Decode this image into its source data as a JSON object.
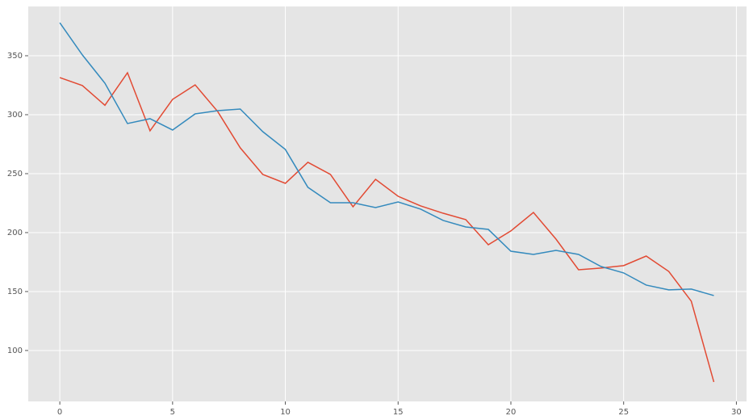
{
  "chart_data": {
    "type": "line",
    "x": [
      0,
      1,
      2,
      3,
      4,
      5,
      6,
      7,
      8,
      9,
      10,
      11,
      12,
      13,
      14,
      15,
      16,
      17,
      18,
      19,
      20,
      21,
      22,
      23,
      24,
      25,
      26,
      27,
      28,
      29
    ],
    "series": [
      {
        "color": "#E24A33",
        "values": [
          331.5,
          324.7,
          308,
          335.6,
          286.3,
          313,
          325.3,
          302.7,
          271.9,
          249.3,
          241.8,
          259.6,
          249.3,
          221.9,
          245.2,
          230.8,
          222.6,
          216.4,
          211,
          189.7,
          201.4,
          217.1,
          194.5,
          168.5,
          169.9,
          172,
          180.1,
          167.1,
          141.8,
          73.3
        ]
      },
      {
        "color": "#348ABD",
        "values": [
          378,
          350.7,
          326.7,
          292.5,
          296.6,
          287,
          300.7,
          303.4,
          304.8,
          285.6,
          270.5,
          238.4,
          225.3,
          225.3,
          221.2,
          226,
          219.9,
          210.3,
          204.8,
          202.7,
          184.2,
          181.5,
          184.9,
          181.5,
          171.2,
          165.8,
          155.5,
          151.4,
          152.1,
          146.6
        ]
      }
    ],
    "xlim": [
      -1.4,
      30.45
    ],
    "ylim": [
      56.8,
      391.8
    ],
    "xticks": [
      0,
      5,
      10,
      15,
      20,
      25,
      30
    ],
    "yticks": [
      100,
      150,
      200,
      250,
      300,
      350
    ],
    "grid": true
  }
}
